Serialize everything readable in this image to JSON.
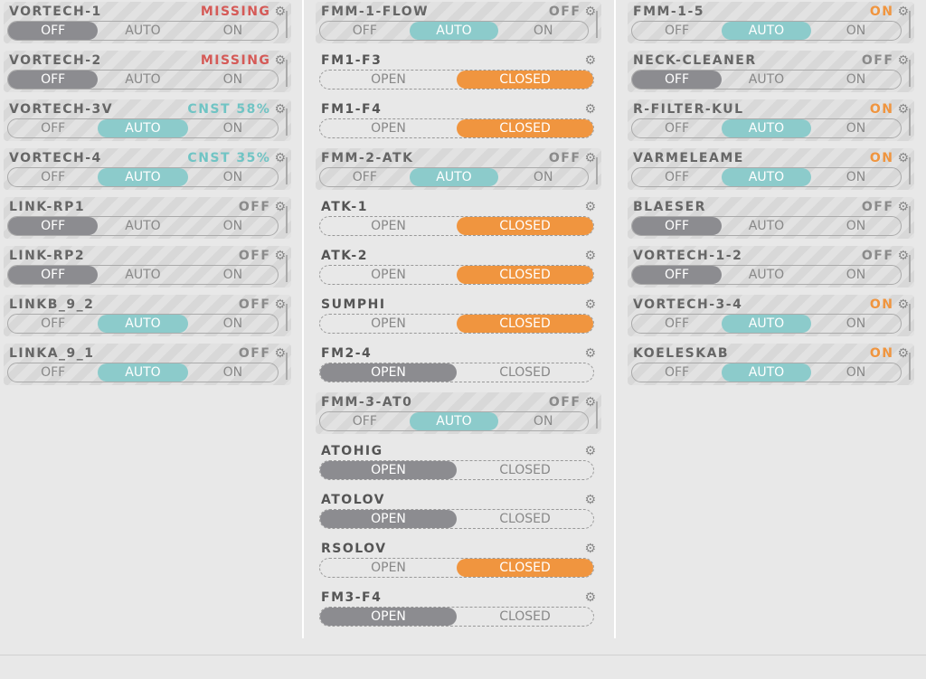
{
  "colors": {
    "missing": "#d55a57",
    "cnst": "#70c4c4",
    "on": "#f0953f",
    "off": "#8a8a8a",
    "sel_off": "#8c8c90",
    "sel_auto": "#8ccbcb",
    "sel_closed": "#f0953f",
    "sel_open": "#8c8c90"
  },
  "gear_icon": "gear-icon",
  "three_options": [
    "OFF",
    "AUTO",
    "ON"
  ],
  "two_options": [
    "OPEN",
    "CLOSED"
  ],
  "columns": [
    [
      {
        "name": "VORTECH-1",
        "status": "MISSING",
        "status_kind": "missing",
        "type": "three",
        "selected": 0
      },
      {
        "name": "VORTECH-2",
        "status": "MISSING",
        "status_kind": "missing",
        "type": "three",
        "selected": 0
      },
      {
        "name": "VORTECH-3V",
        "status": "CNST 58%",
        "status_kind": "cnst",
        "type": "three",
        "selected": 1
      },
      {
        "name": "VORTECH-4",
        "status": "CNST 35%",
        "status_kind": "cnst",
        "type": "three",
        "selected": 1
      },
      {
        "name": "LINK-RP1",
        "status": "OFF",
        "status_kind": "off",
        "type": "three",
        "selected": 0
      },
      {
        "name": "LINK-RP2",
        "status": "OFF",
        "status_kind": "off",
        "type": "three",
        "selected": 0
      },
      {
        "name": "LINKB_9_2",
        "status": "OFF",
        "status_kind": "off",
        "type": "three",
        "selected": 1
      },
      {
        "name": "LINKA_9_1",
        "status": "OFF",
        "status_kind": "off",
        "type": "three",
        "selected": 1
      }
    ],
    [
      {
        "name": "FMM-1-FLOW",
        "status": "OFF",
        "status_kind": "off",
        "type": "three",
        "selected": 1
      },
      {
        "name": "FM1-F3",
        "status": "",
        "type": "two",
        "selected": 1
      },
      {
        "name": "FM1-F4",
        "status": "",
        "type": "two",
        "selected": 1
      },
      {
        "name": "FMM-2-ATK",
        "status": "OFF",
        "status_kind": "off",
        "type": "three",
        "selected": 1
      },
      {
        "name": "ATK-1",
        "status": "",
        "type": "two",
        "selected": 1
      },
      {
        "name": "ATK-2",
        "status": "",
        "type": "two",
        "selected": 1
      },
      {
        "name": "SUMPHI",
        "status": "",
        "type": "two",
        "selected": 1
      },
      {
        "name": "FM2-4",
        "status": "",
        "type": "two",
        "selected": 0
      },
      {
        "name": "FMM-3-AT0",
        "status": "OFF",
        "status_kind": "off",
        "type": "three",
        "selected": 1
      },
      {
        "name": "ATOHIG",
        "status": "",
        "type": "two",
        "selected": 0
      },
      {
        "name": "ATOLOV",
        "status": "",
        "type": "two",
        "selected": 0
      },
      {
        "name": "RSOLOV",
        "status": "",
        "type": "two",
        "selected": 1
      },
      {
        "name": "FM3-F4",
        "status": "",
        "type": "two",
        "selected": 0
      }
    ],
    [
      {
        "name": "FMM-1-5",
        "status": "ON",
        "status_kind": "on",
        "type": "three",
        "selected": 1
      },
      {
        "name": "NECK-CLEANER",
        "status": "OFF",
        "status_kind": "off",
        "type": "three",
        "selected": 0
      },
      {
        "name": "R-FILTER-KUL",
        "status": "ON",
        "status_kind": "on",
        "type": "three",
        "selected": 1
      },
      {
        "name": "VARMELEAME",
        "status": "ON",
        "status_kind": "on",
        "type": "three",
        "selected": 1
      },
      {
        "name": "BLAESER",
        "status": "OFF",
        "status_kind": "off",
        "type": "three",
        "selected": 0
      },
      {
        "name": "VORTECH-1-2",
        "status": "OFF",
        "status_kind": "off",
        "type": "three",
        "selected": 0
      },
      {
        "name": "VORTECH-3-4",
        "status": "ON",
        "status_kind": "on",
        "type": "three",
        "selected": 1
      },
      {
        "name": "KOELESKAB",
        "status": "ON",
        "status_kind": "on",
        "type": "three",
        "selected": 1
      }
    ]
  ]
}
